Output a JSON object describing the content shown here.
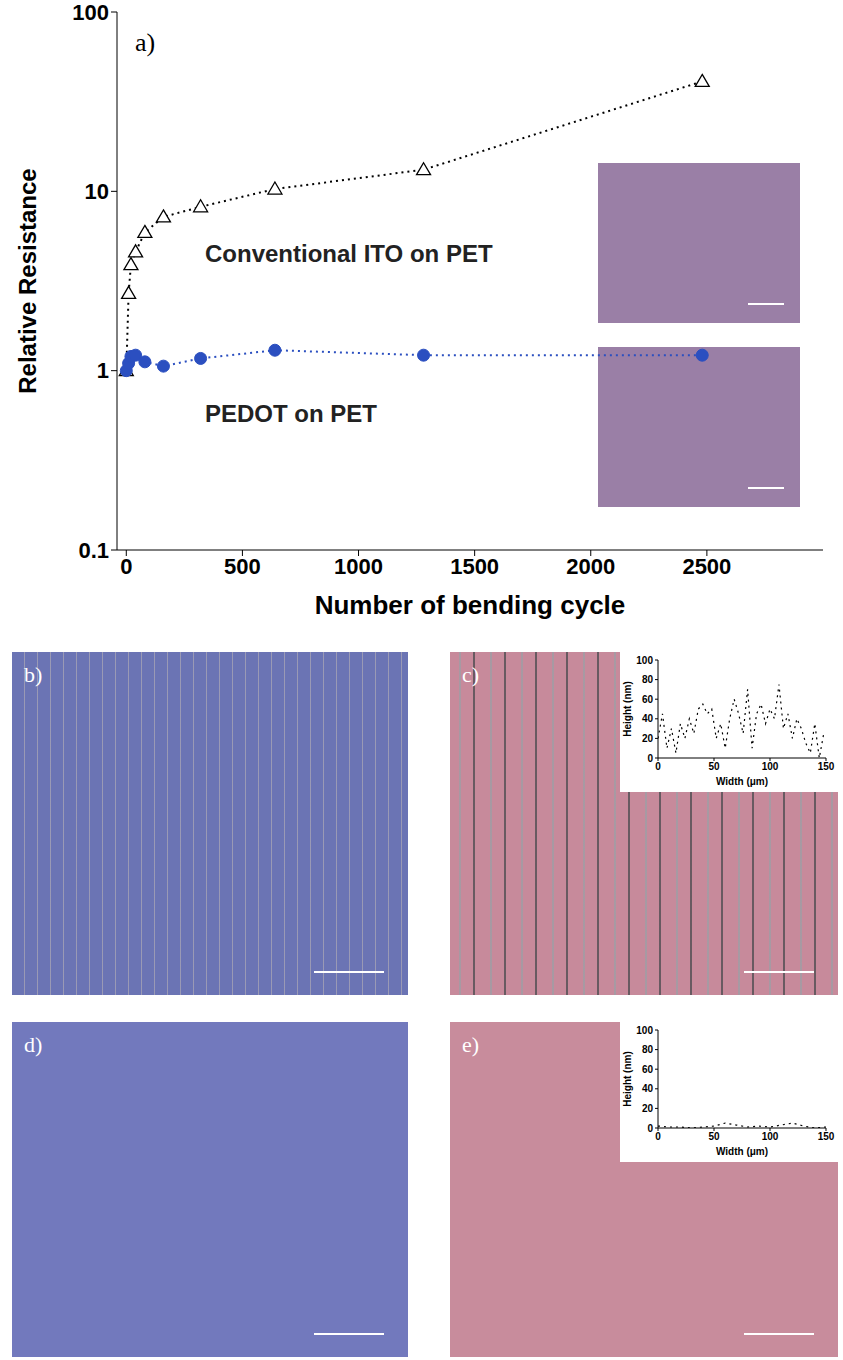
{
  "chart_data": {
    "type": "line",
    "title": "a)",
    "x_label": "Number of bending cycle",
    "y_label": "Relative Resistance",
    "x": [
      0,
      10,
      20,
      40,
      80,
      160,
      320,
      640,
      1280,
      2480
    ],
    "series": [
      {
        "name": "Conventional ITO on PET",
        "color": "#000000",
        "marker": "triangle",
        "line_style": "dotted",
        "values": [
          1.0,
          2.7,
          3.9,
          4.6,
          5.9,
          7.2,
          8.2,
          10.3,
          13.2,
          41
        ]
      },
      {
        "name": "PEDOT on PET",
        "color": "#2b4fc0",
        "marker": "circle",
        "line_style": "dotted",
        "values": [
          1.0,
          1.1,
          1.2,
          1.22,
          1.12,
          1.06,
          1.17,
          1.3,
          1.22,
          1.22
        ]
      }
    ],
    "xlim": [
      -40,
      3000
    ],
    "xticks": [
      0,
      500,
      1000,
      1500,
      2000,
      2500
    ],
    "ylim": [
      0.1,
      100
    ],
    "yticks": [
      0.1,
      1,
      10,
      100
    ],
    "log": "y"
  },
  "micrographs": [
    {
      "label": "b)",
      "color": "#6b74b4"
    },
    {
      "label": "c)",
      "color": "#c78a9b",
      "chart_data": {
        "type": "line",
        "x_label": "Width (μm)",
        "y_label": "Height (nm)",
        "x": [
          0,
          4,
          8,
          12,
          16,
          20,
          24,
          28,
          32,
          36,
          40,
          44,
          48,
          52,
          56,
          60,
          64,
          68,
          72,
          76,
          80,
          84,
          88,
          92,
          96,
          100,
          104,
          108,
          112,
          116,
          120,
          124,
          128,
          132,
          136,
          140,
          144,
          148
        ],
        "values": [
          20,
          45,
          10,
          30,
          5,
          35,
          20,
          40,
          25,
          50,
          55,
          45,
          50,
          20,
          35,
          10,
          40,
          60,
          45,
          25,
          70,
          10,
          45,
          55,
          35,
          50,
          40,
          75,
          30,
          45,
          20,
          40,
          30,
          15,
          5,
          35,
          0,
          25
        ],
        "color": "#000000",
        "line_style": "dotted",
        "xlim": [
          0,
          150
        ],
        "xticks": [
          0,
          50,
          100,
          150
        ],
        "ylim": [
          0,
          100
        ],
        "yticks": [
          0,
          20,
          40,
          60,
          80,
          100
        ]
      }
    },
    {
      "label": "d)",
      "color": "#7279bd"
    },
    {
      "label": "e)",
      "color": "#c88c9c",
      "chart_data": {
        "type": "line",
        "x_label": "Width (μm)",
        "y_label": "Height (nm)",
        "x": [
          0,
          10,
          20,
          30,
          40,
          50,
          60,
          70,
          80,
          90,
          100,
          110,
          120,
          130,
          140,
          150
        ],
        "values": [
          2,
          1,
          1,
          0,
          1,
          2,
          5,
          3,
          1,
          2,
          1,
          3,
          5,
          2,
          0,
          1
        ],
        "color": "#000000",
        "line_style": "dotted",
        "xlim": [
          0,
          150
        ],
        "xticks": [
          0,
          50,
          100,
          150
        ],
        "ylim": [
          0,
          100
        ],
        "yticks": [
          0,
          20,
          40,
          60,
          80,
          100
        ]
      }
    }
  ]
}
